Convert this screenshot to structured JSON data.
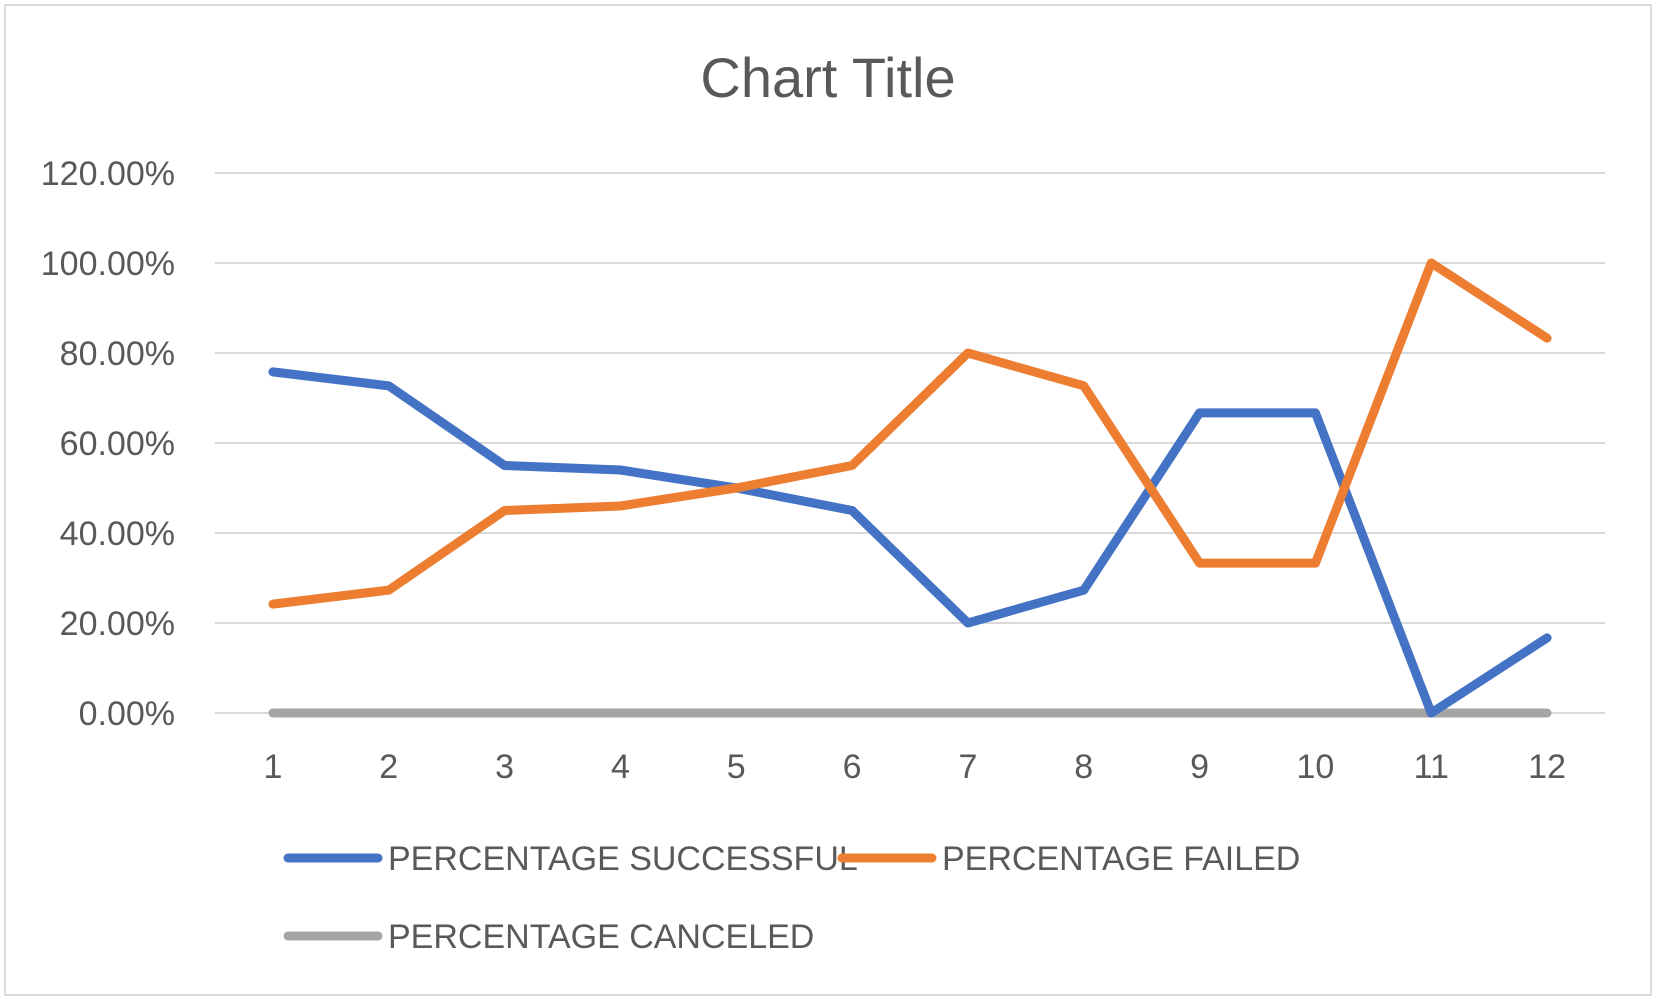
{
  "chart_data": {
    "type": "line",
    "title": "Chart Title",
    "xlabel": "",
    "ylabel": "",
    "categories": [
      "1",
      "2",
      "3",
      "4",
      "5",
      "6",
      "7",
      "8",
      "9",
      "10",
      "11",
      "12"
    ],
    "ylim": [
      0,
      1.2
    ],
    "yticks": [
      {
        "value": 0,
        "label": "0.00%"
      },
      {
        "value": 0.2,
        "label": "20.00%"
      },
      {
        "value": 0.4,
        "label": "40.00%"
      },
      {
        "value": 0.6,
        "label": "60.00%"
      },
      {
        "value": 0.8,
        "label": "80.00%"
      },
      {
        "value": 1.0,
        "label": "100.00%"
      },
      {
        "value": 1.2,
        "label": "120.00%"
      }
    ],
    "grid": true,
    "legend_position": "bottom",
    "series": [
      {
        "name": "PERCENTAGE SUCCESSFUL",
        "color": "#4472c4",
        "values": [
          0.758,
          0.727,
          0.55,
          0.54,
          0.5,
          0.45,
          0.2,
          0.273,
          0.667,
          0.667,
          0.0,
          0.167
        ]
      },
      {
        "name": "PERCENTAGE FAILED",
        "color": "#ed7d31",
        "values": [
          0.242,
          0.273,
          0.45,
          0.46,
          0.5,
          0.55,
          0.8,
          0.727,
          0.333,
          0.333,
          1.0,
          0.833
        ]
      },
      {
        "name": "PERCENTAGE CANCELED",
        "color": "#a5a5a5",
        "values": [
          0,
          0,
          0,
          0,
          0,
          0,
          0,
          0,
          0,
          0,
          0,
          0
        ]
      }
    ]
  }
}
